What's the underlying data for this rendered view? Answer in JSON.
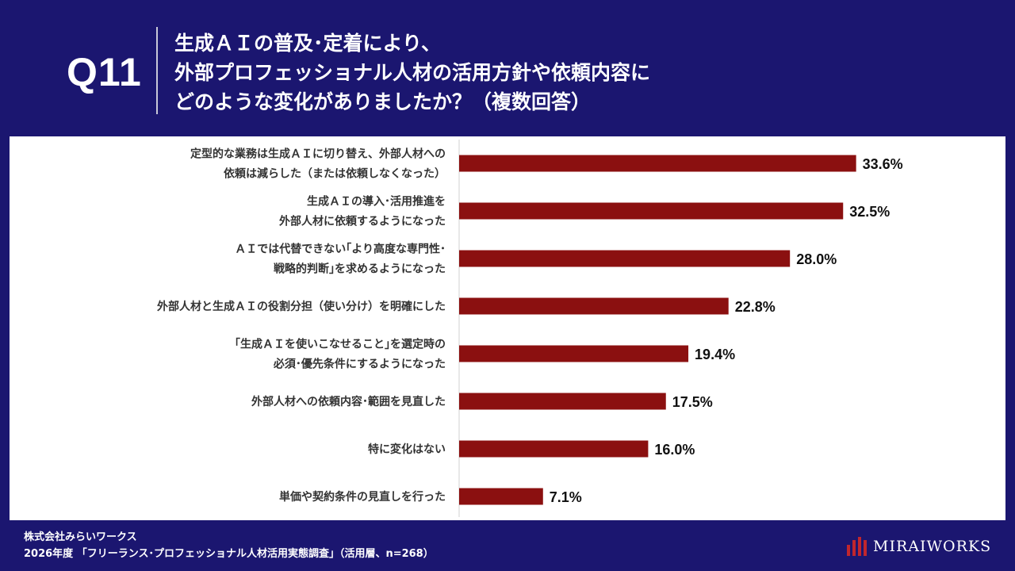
{
  "header": {
    "question_number": "Q11",
    "title_lines": [
      "生成ＡＩの普及･定着により、",
      "外部プロフェッショナル人材の活用方針や依頼内容に",
      "どのような変化がありましたか？（複数回答）"
    ]
  },
  "chart_data": {
    "type": "bar",
    "orientation": "horizontal",
    "categories": [
      [
        "定型的な業務は生成ＡＩに切り替え、外部人材への",
        "依頼は減らした（または依頼しなくなった）"
      ],
      [
        "生成ＡＩの導入･活用推進を",
        "外部人材に依頼するようになった"
      ],
      [
        "ＡＩでは代替できない｢より高度な専門性･",
        "戦略的判断｣を求めるようになった"
      ],
      [
        "外部人材と生成ＡＩの役割分担（使い分け）を明確にした"
      ],
      [
        "｢生成ＡＩを使いこなせること｣を選定時の",
        "必須･優先条件にするようになった"
      ],
      [
        "外部人材への依頼内容･範囲を見直した"
      ],
      [
        "特に変化はない"
      ],
      [
        "単価や契約条件の見直しを行った"
      ]
    ],
    "values": [
      33.6,
      32.5,
      28.0,
      22.8,
      19.4,
      17.5,
      16.0,
      7.1
    ],
    "value_labels": [
      "33.6%",
      "32.5%",
      "28.0%",
      "22.8%",
      "19.4%",
      "17.5%",
      "16.0%",
      "7.1%"
    ],
    "xlim": [
      0,
      100
    ],
    "bar_color": "#8b1010"
  },
  "footer": {
    "company": "株式会社みらいワークス",
    "source": "2026年度 「フリーランス･プロフェッショナル人材活用実態調査」（活用層、n=268）"
  },
  "logo": {
    "text": "MIRAIWORKS",
    "accent": "#c0262d"
  }
}
